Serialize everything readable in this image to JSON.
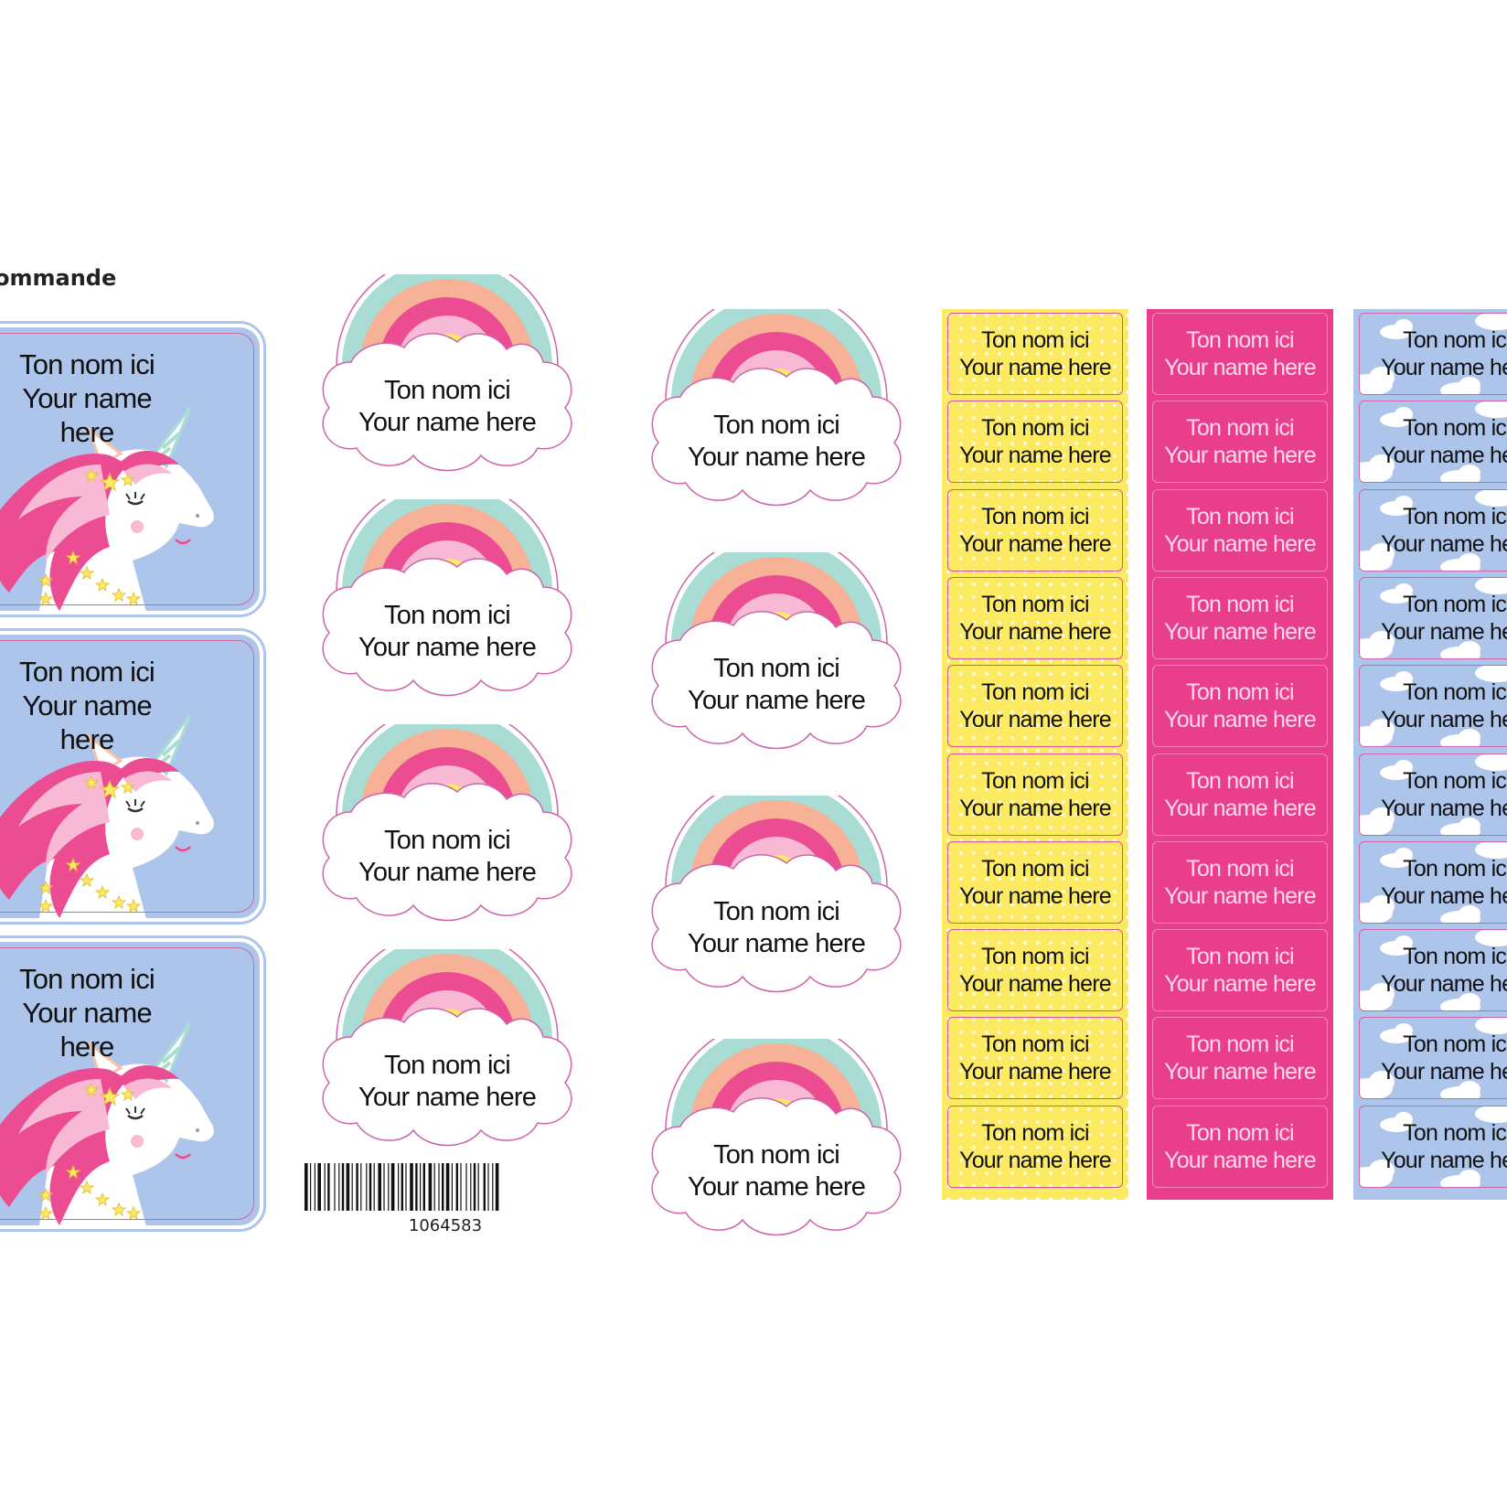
{
  "heading": "ommande",
  "label": {
    "line1": "Ton nom ici",
    "line2": "Your name here"
  },
  "unicorn_labels": [
    {
      "line1": "Ton nom ici",
      "line2": "Your name here"
    },
    {
      "line1": "Ton nom ici",
      "line2": "Your name here"
    },
    {
      "line1": "Ton nom ici",
      "line2": "Your name here"
    }
  ],
  "rainbow_col1": [
    {
      "line1": "Ton nom ici",
      "line2": "Your name here"
    },
    {
      "line1": "Ton nom ici",
      "line2": "Your name here"
    },
    {
      "line1": "Ton nom ici",
      "line2": "Your name here"
    },
    {
      "line1": "Ton nom ici",
      "line2": "Your name here"
    }
  ],
  "rainbow_col2": [
    {
      "line1": "Ton nom ici",
      "line2": "Your name here"
    },
    {
      "line1": "Ton nom ici",
      "line2": "Your name here"
    },
    {
      "line1": "Ton nom ici",
      "line2": "Your name here"
    },
    {
      "line1": "Ton nom ici",
      "line2": "Your name here"
    }
  ],
  "strip_yellow": [
    {
      "line1": "Ton nom ici",
      "line2": "Your name here"
    },
    {
      "line1": "Ton nom ici",
      "line2": "Your name here"
    },
    {
      "line1": "Ton nom ici",
      "line2": "Your name here"
    },
    {
      "line1": "Ton nom ici",
      "line2": "Your name here"
    },
    {
      "line1": "Ton nom ici",
      "line2": "Your name here"
    },
    {
      "line1": "Ton nom ici",
      "line2": "Your name here"
    },
    {
      "line1": "Ton nom ici",
      "line2": "Your name here"
    },
    {
      "line1": "Ton nom ici",
      "line2": "Your name here"
    },
    {
      "line1": "Ton nom ici",
      "line2": "Your name here"
    },
    {
      "line1": "Ton nom ici",
      "line2": "Your name here"
    }
  ],
  "strip_pink": [
    {
      "line1": "Ton nom ici",
      "line2": "Your name here"
    },
    {
      "line1": "Ton nom ici",
      "line2": "Your name here"
    },
    {
      "line1": "Ton nom ici",
      "line2": "Your name here"
    },
    {
      "line1": "Ton nom ici",
      "line2": "Your name here"
    },
    {
      "line1": "Ton nom ici",
      "line2": "Your name here"
    },
    {
      "line1": "Ton nom ici",
      "line2": "Your name here"
    },
    {
      "line1": "Ton nom ici",
      "line2": "Your name here"
    },
    {
      "line1": "Ton nom ici",
      "line2": "Your name here"
    },
    {
      "line1": "Ton nom ici",
      "line2": "Your name here"
    },
    {
      "line1": "Ton nom ici",
      "line2": "Your name here"
    }
  ],
  "strip_blue": [
    {
      "line1": "Ton nom ici",
      "line2": "Your name here"
    },
    {
      "line1": "Ton nom ici",
      "line2": "Your name here"
    },
    {
      "line1": "Ton nom ici",
      "line2": "Your name here"
    },
    {
      "line1": "Ton nom ici",
      "line2": "Your name here"
    },
    {
      "line1": "Ton nom ici",
      "line2": "Your name here"
    },
    {
      "line1": "Ton nom ici",
      "line2": "Your name here"
    },
    {
      "line1": "Ton nom ici",
      "line2": "Your name here"
    },
    {
      "line1": "Ton nom ici",
      "line2": "Your name here"
    },
    {
      "line1": "Ton nom ici",
      "line2": "Your name here"
    },
    {
      "line1": "Ton nom ici",
      "line2": "Your name here"
    }
  ],
  "barcode": {
    "number": "1064583"
  },
  "colors": {
    "unicorn_bg": "#adc5ea",
    "rainbow_teal": "#a8dcd4",
    "rainbow_peach": "#f6b196",
    "rainbow_pink": "#ec4d92",
    "rainbow_light_pink": "#f7b9d3",
    "rainbow_yellow": "#fdec63",
    "strip_yellow": "#fcea63",
    "strip_pink": "#e83e8c",
    "strip_blue": "#adc5ea"
  }
}
